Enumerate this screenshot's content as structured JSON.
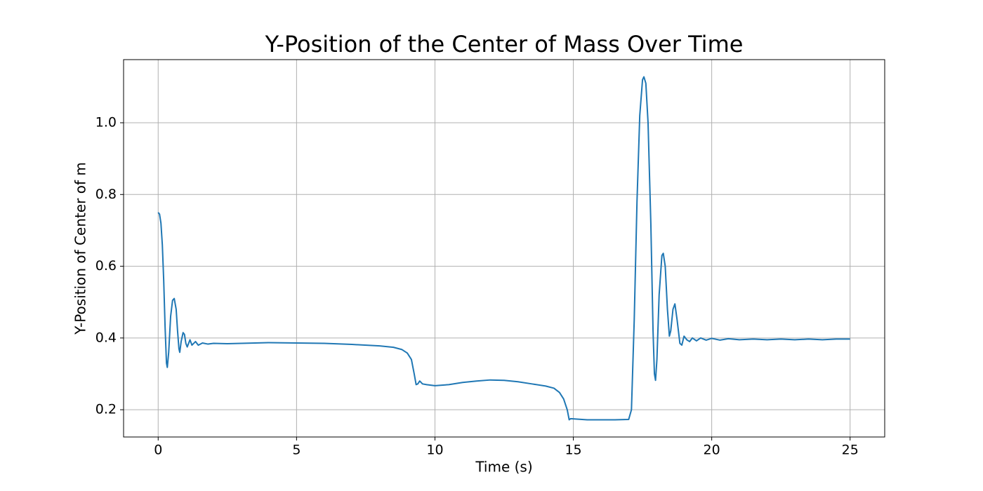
{
  "chart_data": {
    "type": "line",
    "title": "Y-Position of the Center of Mass Over Time",
    "x_label": "Time (s)",
    "y_label": "Y-Position of Center of  m",
    "color": "#1f77b4",
    "grid": true,
    "xlim": [
      -1.25,
      26.25
    ],
    "ylim": [
      0.124,
      1.176
    ],
    "xticks": [
      0,
      5,
      10,
      15,
      20,
      25
    ],
    "yticks": [
      0.2,
      0.4,
      0.6,
      0.8,
      {
        "value": 1,
        "label": "1.0"
      }
    ],
    "x": [
      0,
      0.05,
      0.1,
      0.15,
      0.2,
      0.25,
      0.3,
      0.33,
      0.38,
      0.45,
      0.52,
      0.58,
      0.65,
      0.7,
      0.75,
      0.78,
      0.83,
      0.9,
      0.95,
      1.0,
      1.05,
      1.15,
      1.22,
      1.35,
      1.45,
      1.6,
      1.8,
      2.0,
      2.5,
      3.0,
      3.5,
      4,
      5,
      6,
      7,
      8,
      8.5,
      8.8,
      9.0,
      9.15,
      9.25,
      9.32,
      9.38,
      9.45,
      9.55,
      9.7,
      10,
      10.5,
      11,
      11.5,
      12,
      12.5,
      13,
      13.5,
      14,
      14.3,
      14.5,
      14.65,
      14.78,
      14.85,
      14.9,
      15.5,
      16,
      16.5,
      17.0,
      17.1,
      17.2,
      17.3,
      17.4,
      17.5,
      17.55,
      17.62,
      17.7,
      17.8,
      17.88,
      17.93,
      17.97,
      18.02,
      18.1,
      18.2,
      18.25,
      18.32,
      18.4,
      18.47,
      18.52,
      18.6,
      18.67,
      18.75,
      18.85,
      18.92,
      19.0,
      19.1,
      19.2,
      19.3,
      19.45,
      19.6,
      19.8,
      20.0,
      20.3,
      20.6,
      21,
      21.5,
      22,
      22.5,
      23,
      23.5,
      24,
      24.5,
      25
    ],
    "values": [
      0.75,
      0.745,
      0.72,
      0.66,
      0.56,
      0.43,
      0.33,
      0.318,
      0.36,
      0.46,
      0.505,
      0.51,
      0.48,
      0.42,
      0.37,
      0.36,
      0.39,
      0.415,
      0.41,
      0.385,
      0.375,
      0.395,
      0.38,
      0.39,
      0.38,
      0.386,
      0.383,
      0.385,
      0.384,
      0.385,
      0.386,
      0.387,
      0.386,
      0.385,
      0.382,
      0.378,
      0.374,
      0.368,
      0.358,
      0.34,
      0.3,
      0.27,
      0.272,
      0.28,
      0.272,
      0.27,
      0.267,
      0.27,
      0.276,
      0.28,
      0.283,
      0.282,
      0.278,
      0.272,
      0.266,
      0.26,
      0.248,
      0.23,
      0.2,
      0.172,
      0.175,
      0.172,
      0.172,
      0.172,
      0.173,
      0.2,
      0.45,
      0.78,
      1.02,
      1.12,
      1.128,
      1.11,
      1.0,
      0.72,
      0.42,
      0.3,
      0.282,
      0.34,
      0.52,
      0.63,
      0.636,
      0.6,
      0.48,
      0.405,
      0.42,
      0.48,
      0.495,
      0.45,
      0.385,
      0.38,
      0.405,
      0.395,
      0.39,
      0.4,
      0.392,
      0.4,
      0.394,
      0.399,
      0.394,
      0.398,
      0.395,
      0.397,
      0.395,
      0.397,
      0.395,
      0.397,
      0.395,
      0.397,
      0.397
    ]
  }
}
